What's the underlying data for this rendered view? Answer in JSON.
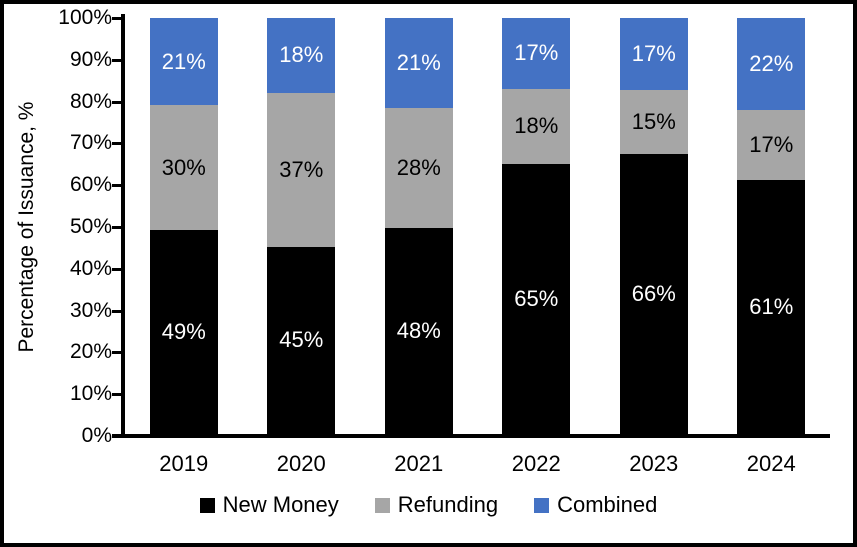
{
  "chart_data": {
    "type": "bar",
    "stacked": true,
    "title": "",
    "ylabel": "Percentage of Issuance, %",
    "xlabel": "",
    "categories": [
      "2019",
      "2020",
      "2021",
      "2022",
      "2023",
      "2024"
    ],
    "series": [
      {
        "name": "New Money",
        "color": "#000000",
        "label_color": "#ffffff",
        "values": [
          49,
          45,
          48,
          65,
          66,
          61
        ]
      },
      {
        "name": "Refunding",
        "color": "#A6A6A6",
        "label_color": "#000000",
        "values": [
          30,
          37,
          28,
          18,
          15,
          17
        ]
      },
      {
        "name": "Combined",
        "color": "#4472C4",
        "label_color": "#ffffff",
        "values": [
          21,
          18,
          21,
          17,
          17,
          22
        ]
      }
    ],
    "data_label_suffix": "%",
    "y_tick_labels": [
      "0%",
      "10%",
      "20%",
      "30%",
      "40%",
      "50%",
      "60%",
      "70%",
      "80%",
      "90%",
      "100%"
    ],
    "ylim": [
      0,
      100
    ],
    "grid": false,
    "legend_position": "bottom",
    "axis_color": "#000000",
    "background_color": "#ffffff",
    "frame_border_color": "#000000"
  }
}
